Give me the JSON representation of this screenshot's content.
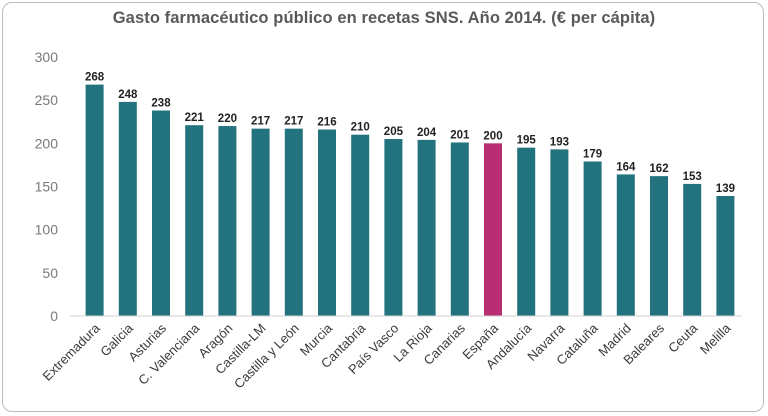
{
  "chart_data": {
    "type": "bar",
    "title": "Gasto farmacéutico público en recetas SNS. Año 2014. (€ per cápita)",
    "categories": [
      "Extremadura",
      "Galicia",
      "Asturias",
      "C. Valenciana",
      "Aragón",
      "Castilla-LM",
      "Castilla y León",
      "Murcia",
      "Cantabria",
      "País Vasco",
      "La Rioja",
      "Canarias",
      "España",
      "Andalucía",
      "Navarra",
      "Cataluña",
      "Madrid",
      "Baleares",
      "Ceuta",
      "Melilla"
    ],
    "values": [
      268,
      248,
      238,
      221,
      220,
      217,
      217,
      216,
      210,
      205,
      204,
      201,
      200,
      195,
      193,
      179,
      164,
      162,
      153,
      139
    ],
    "ylim": [
      0,
      300
    ],
    "yticks": [
      0,
      50,
      100,
      150,
      200,
      250,
      300
    ],
    "grid": false,
    "legend": "none",
    "colors": {
      "default": "#22737e",
      "highlight": "#b82e72",
      "highlight_category": "España"
    }
  }
}
